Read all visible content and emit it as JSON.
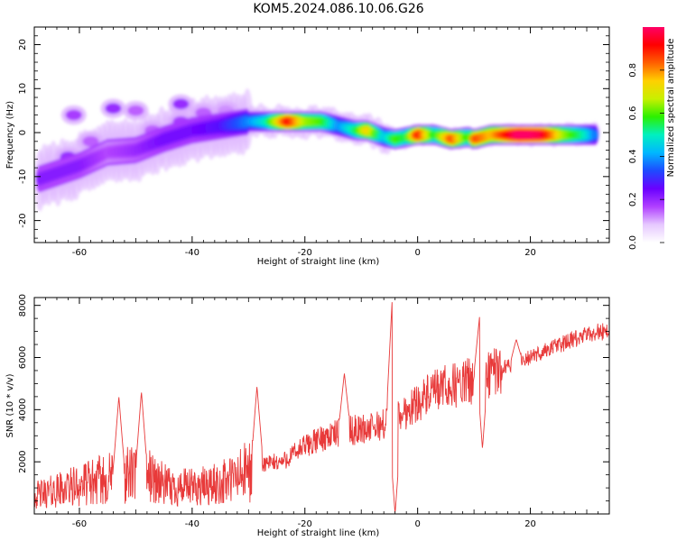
{
  "title": "KOM5.2024.086.10.06.G26",
  "colors": {
    "snr_line": "#e83a3a",
    "spectrum_palette": [
      "#ffffff",
      "#e6c8ff",
      "#b040ff",
      "#6a00ff",
      "#1e4bff",
      "#00b7ff",
      "#00f0c0",
      "#2cf000",
      "#c8f000",
      "#ffd000",
      "#ff6000",
      "#ff0000",
      "#ff0066"
    ]
  },
  "chart_data": [
    {
      "type": "heatmap",
      "name": "spectrogram",
      "xlabel": "Height of straight line (km)",
      "ylabel": "Frequency (Hz)",
      "xlim": [
        -68,
        34
      ],
      "ylim": [
        -25,
        24
      ],
      "xticks": [
        -60,
        -40,
        -20,
        0,
        20
      ],
      "yticks": [
        -20,
        -10,
        0,
        10,
        20
      ],
      "colorbar": {
        "label": "Normalized spectral amplitude",
        "range": [
          0.0,
          1.0
        ],
        "ticks": [
          0.0,
          0.2,
          0.4,
          0.6,
          0.8
        ]
      },
      "ridge": [
        {
          "x": -67,
          "y": -10.5,
          "amp": 0.2
        },
        {
          "x": -60,
          "y": -7.5,
          "amp": 0.2
        },
        {
          "x": -55,
          "y": -4.5,
          "amp": 0.15
        },
        {
          "x": -50,
          "y": -4.0,
          "amp": 0.18
        },
        {
          "x": -45,
          "y": -1.5,
          "amp": 0.22
        },
        {
          "x": -40,
          "y": 0.5,
          "amp": 0.22
        },
        {
          "x": -35,
          "y": 1.5,
          "amp": 0.25
        },
        {
          "x": -30,
          "y": 2.5,
          "amp": 0.35
        },
        {
          "x": -27,
          "y": 2.5,
          "amp": 0.45
        },
        {
          "x": -23,
          "y": 2.5,
          "amp": 0.85
        },
        {
          "x": -20,
          "y": 2.5,
          "amp": 0.6
        },
        {
          "x": -17,
          "y": 2.5,
          "amp": 0.55
        },
        {
          "x": -14,
          "y": 1.5,
          "amp": 0.35
        },
        {
          "x": -11,
          "y": 0.5,
          "amp": 0.5
        },
        {
          "x": -9,
          "y": 0.5,
          "amp": 0.7
        },
        {
          "x": -6,
          "y": -1.0,
          "amp": 0.4
        },
        {
          "x": -4,
          "y": -1.5,
          "amp": 0.55
        },
        {
          "x": -2,
          "y": -1.0,
          "amp": 0.5
        },
        {
          "x": 0,
          "y": -0.5,
          "amp": 0.85
        },
        {
          "x": 3,
          "y": -0.5,
          "amp": 0.5
        },
        {
          "x": 6,
          "y": -1.5,
          "amp": 0.8
        },
        {
          "x": 9,
          "y": -1.0,
          "amp": 0.5
        },
        {
          "x": 10,
          "y": -1.5,
          "amp": 0.8
        },
        {
          "x": 13,
          "y": -0.5,
          "amp": 0.7
        },
        {
          "x": 18,
          "y": -0.5,
          "amp": 0.95
        },
        {
          "x": 22,
          "y": -0.5,
          "amp": 0.9
        },
        {
          "x": 26,
          "y": -0.5,
          "amp": 0.6
        },
        {
          "x": 30,
          "y": -0.5,
          "amp": 0.45
        },
        {
          "x": 32,
          "y": -0.5,
          "amp": 0.3
        }
      ],
      "blobs": [
        {
          "x": -62,
          "y": -5.5,
          "amp": 0.2
        },
        {
          "x": -58,
          "y": -2.0,
          "amp": 0.15
        },
        {
          "x": -61,
          "y": 4.0,
          "amp": 0.18
        },
        {
          "x": -54,
          "y": 5.5,
          "amp": 0.2
        },
        {
          "x": -50,
          "y": 5.0,
          "amp": 0.15
        },
        {
          "x": -47,
          "y": 0.5,
          "amp": 0.15
        },
        {
          "x": -42,
          "y": 6.5,
          "amp": 0.2
        },
        {
          "x": -42,
          "y": 2.5,
          "amp": 0.18
        },
        {
          "x": -38,
          "y": 4.5,
          "amp": 0.15
        },
        {
          "x": -34,
          "y": 5.0,
          "amp": 0.12
        }
      ]
    },
    {
      "type": "line",
      "name": "snr",
      "xlabel": "Height of straight line (km)",
      "ylabel": "SNR (10 * v/v)",
      "xlim": [
        -68,
        34
      ],
      "ylim": [
        0,
        8300
      ],
      "xticks": [
        -60,
        -40,
        -20,
        0,
        20
      ],
      "yticks": [
        2000,
        4000,
        6000,
        8000
      ],
      "envelope_x": [
        -68,
        -64,
        -60,
        -56,
        -52,
        -48,
        -44,
        -40,
        -36,
        -32,
        -28,
        -24,
        -20,
        -16,
        -12,
        -8,
        -4,
        0,
        4,
        8,
        12,
        16,
        20,
        24,
        28,
        32,
        34
      ],
      "envelope_y": [
        700,
        900,
        1100,
        1300,
        1500,
        1500,
        1000,
        1000,
        1100,
        1400,
        1900,
        2000,
        2600,
        3000,
        3200,
        3300,
        3600,
        4300,
        4800,
        5000,
        5300,
        5700,
        6000,
        6400,
        6700,
        7000,
        7000
      ],
      "peaks": [
        {
          "x": -53,
          "y": 4500
        },
        {
          "x": -49,
          "y": 4700
        },
        {
          "x": -28.5,
          "y": 4900
        },
        {
          "x": -13,
          "y": 5400
        },
        {
          "x": -4.5,
          "y": 8300
        },
        {
          "x": 11,
          "y": 7600
        },
        {
          "x": 17.5,
          "y": 6700
        }
      ],
      "dips": [
        {
          "x": -4,
          "y": 0
        },
        {
          "x": 11.5,
          "y": 2500
        }
      ]
    }
  ]
}
